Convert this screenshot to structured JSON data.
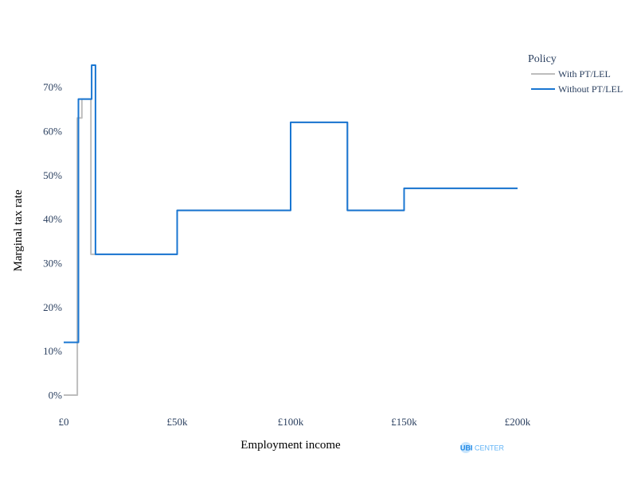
{
  "chart_data": {
    "type": "line",
    "xlabel": "Employment income",
    "ylabel": "Marginal tax rate",
    "xlim": [
      0,
      200000
    ],
    "ylim": [
      0,
      0.75
    ],
    "x_ticks": [
      {
        "value": 0,
        "label": "£0"
      },
      {
        "value": 50000,
        "label": "£50k"
      },
      {
        "value": 100000,
        "label": "£100k"
      },
      {
        "value": 150000,
        "label": "£150k"
      },
      {
        "value": 200000,
        "label": "£200k"
      }
    ],
    "y_ticks": [
      {
        "value": 0,
        "label": "0%"
      },
      {
        "value": 0.1,
        "label": "10%"
      },
      {
        "value": 0.2,
        "label": "20%"
      },
      {
        "value": 0.3,
        "label": "30%"
      },
      {
        "value": 0.4,
        "label": "40%"
      },
      {
        "value": 0.5,
        "label": "50%"
      },
      {
        "value": 0.6,
        "label": "60%"
      },
      {
        "value": 0.7,
        "label": "70%"
      }
    ],
    "grid": false,
    "legend": {
      "title": "Policy",
      "position": "top-right"
    },
    "series": [
      {
        "name": "With PT/LEL",
        "color": "#bdbdbd",
        "x": [
          0,
          6000,
          6000,
          8000,
          8000,
          12000,
          12000,
          12500,
          12500,
          50000,
          50000,
          100000,
          100000,
          125000,
          125000,
          150000,
          150000,
          200000
        ],
        "y": [
          0,
          0,
          0.63,
          0.63,
          0.673,
          0.673,
          0.32,
          0.32,
          0.32,
          0.32,
          0.42,
          0.42,
          0.62,
          0.62,
          0.42,
          0.42,
          0.47,
          0.47
        ]
      },
      {
        "name": "Without PT/LEL",
        "color": "#1976d2",
        "x": [
          0,
          6500,
          6500,
          12300,
          12300,
          14000,
          14000,
          50000,
          50000,
          100000,
          100000,
          125000,
          125000,
          150000,
          150000,
          200000
        ],
        "y": [
          0.12,
          0.12,
          0.673,
          0.673,
          0.75,
          0.75,
          0.32,
          0.32,
          0.42,
          0.42,
          0.62,
          0.62,
          0.42,
          0.42,
          0.47,
          0.47
        ]
      }
    ]
  },
  "logo": {
    "ubi": "UBI",
    "center": "CENTER"
  }
}
